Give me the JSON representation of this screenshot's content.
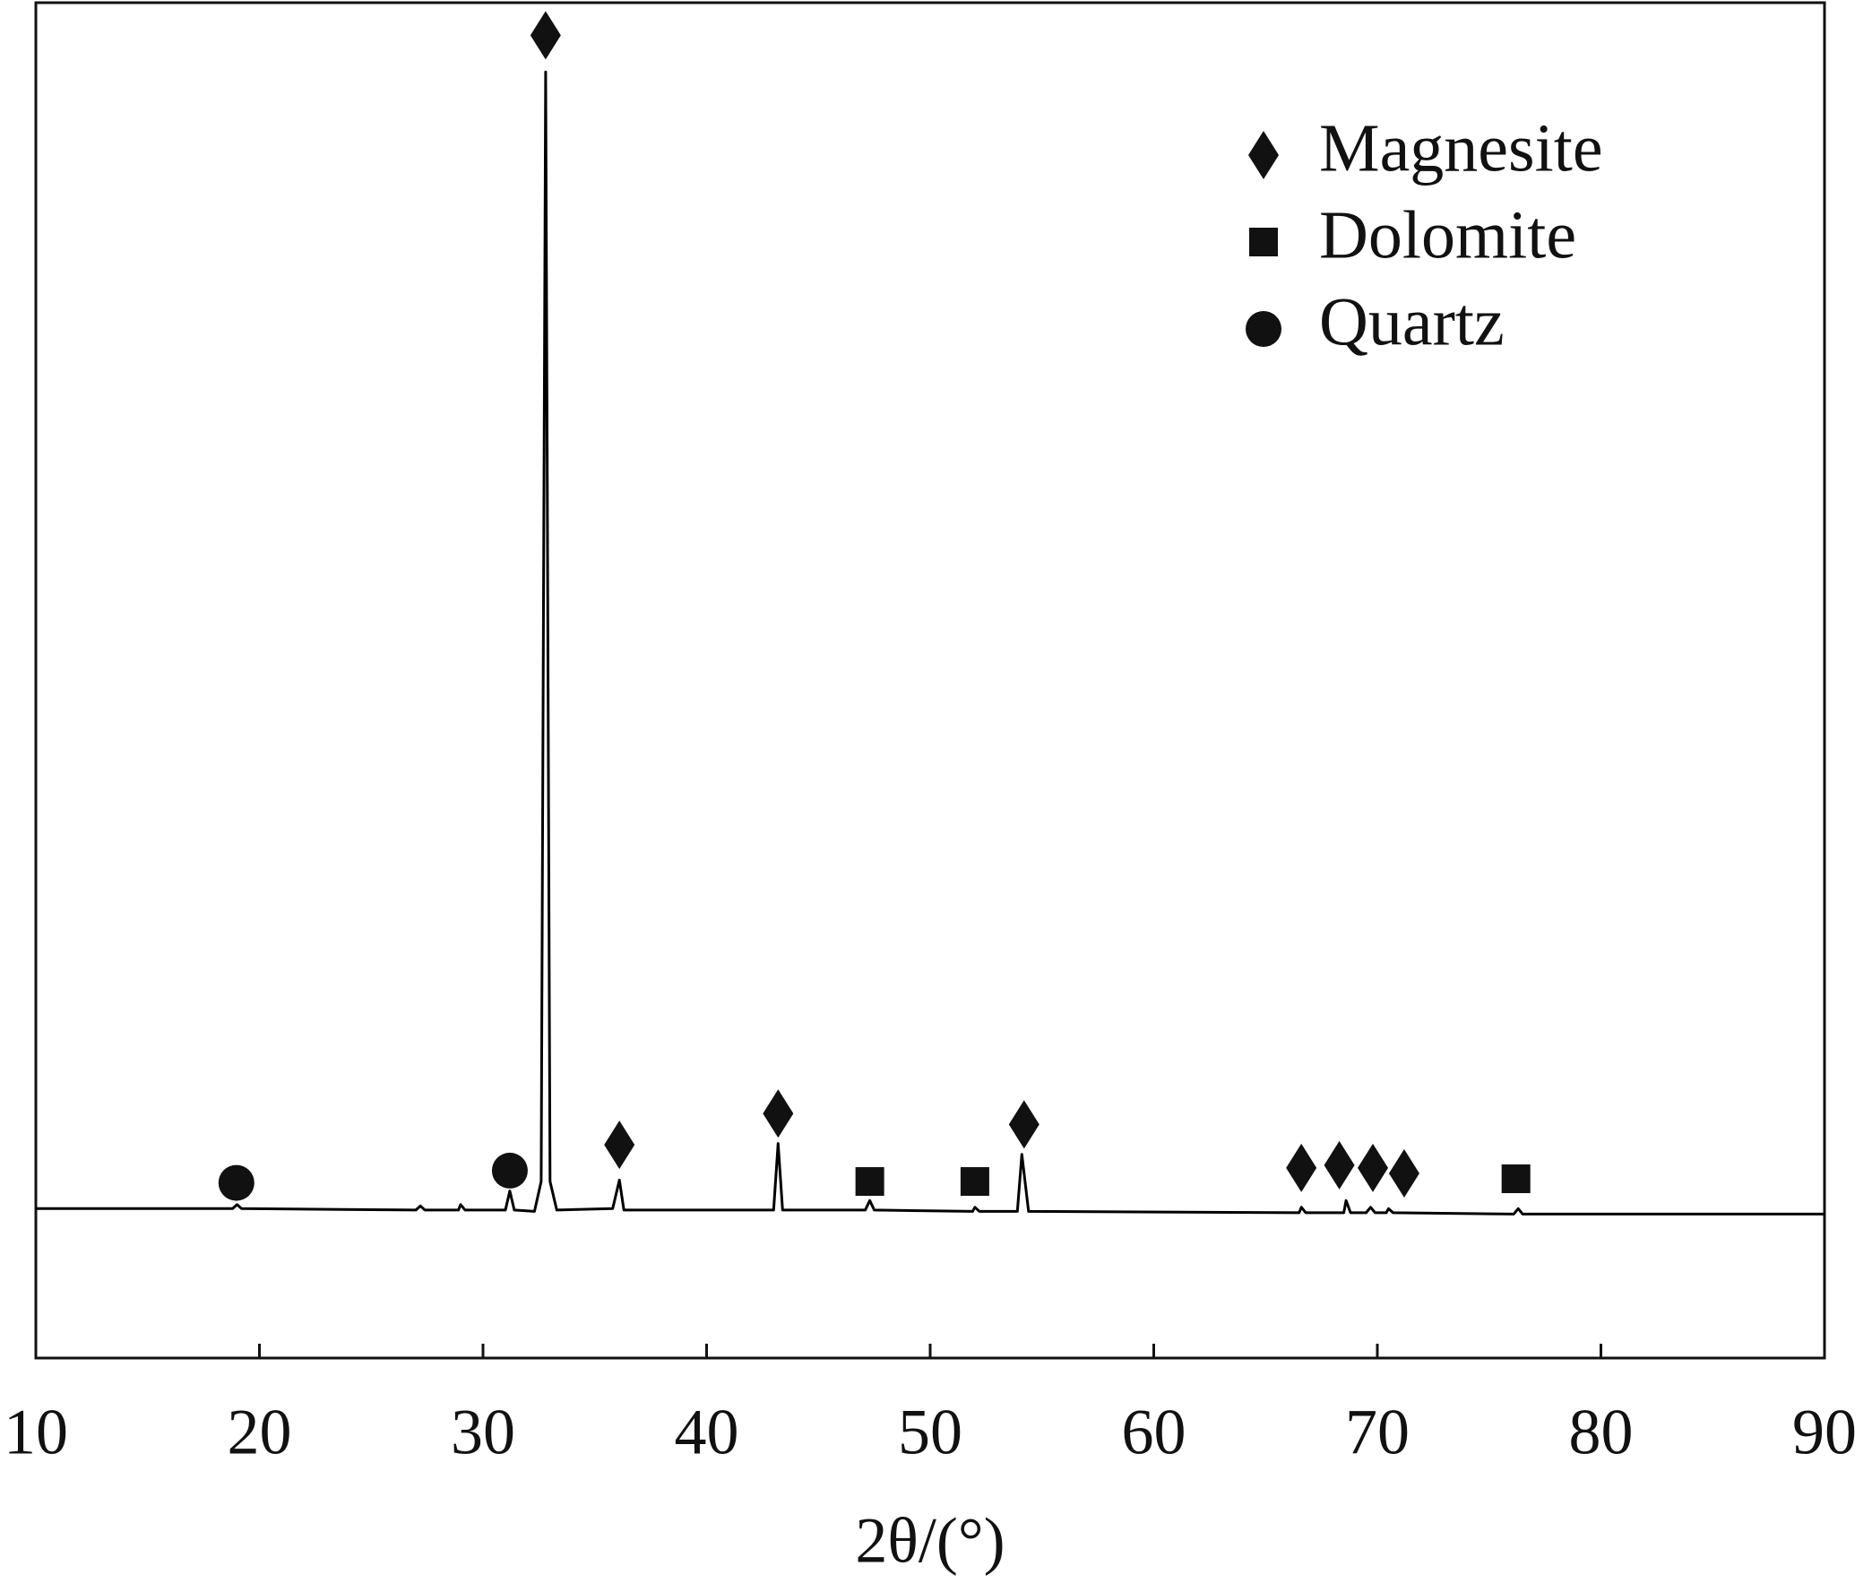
{
  "chart_data": {
    "type": "line",
    "xlabel": "2θ/(°)",
    "xlim": [
      10,
      90
    ],
    "xticks": [
      10,
      20,
      30,
      40,
      50,
      60,
      70,
      80,
      90
    ],
    "ylim": [
      0,
      100
    ],
    "color": "#000000",
    "x": [
      10,
      18.8,
      19.0,
      19.2,
      27,
      27.2,
      27.4,
      28.9,
      29.0,
      29.2,
      31.0,
      31.2,
      31.4,
      32.3,
      32.6,
      32.8,
      33.0,
      33.3,
      35.8,
      36.1,
      36.3,
      43.0,
      43.2,
      43.4,
      47.1,
      47.3,
      47.5,
      51.9,
      52.0,
      52.2,
      53.9,
      54.1,
      54.4,
      66.5,
      66.6,
      66.8,
      68.5,
      68.6,
      68.8,
      69.5,
      69.7,
      69.9,
      70.4,
      70.5,
      70.7,
      76.1,
      76.3,
      76.5,
      90
    ],
    "values": [
      11.0,
      11.0,
      11.3,
      11.0,
      10.9,
      11.2,
      10.9,
      10.9,
      11.3,
      10.9,
      10.9,
      12.3,
      10.9,
      10.8,
      13.0,
      94.7,
      13.0,
      10.9,
      11.0,
      13.1,
      10.9,
      10.9,
      15.8,
      10.9,
      10.9,
      11.6,
      10.9,
      10.8,
      11.1,
      10.8,
      10.8,
      15.0,
      10.8,
      10.7,
      11.1,
      10.7,
      10.7,
      11.6,
      10.7,
      10.7,
      11.1,
      10.7,
      10.7,
      11.0,
      10.7,
      10.6,
      11.0,
      10.6,
      10.6
    ],
    "legend": "upper right",
    "markers": [
      {
        "name": "Magnesite",
        "symbol": "diamond",
        "color": "#111111",
        "x": [
          32.8,
          36.1,
          43.2,
          54.2,
          66.6,
          68.3,
          69.8,
          71.2
        ],
        "y": [
          97.4,
          15.7,
          18.0,
          17.2,
          14.0,
          14.2,
          14.0,
          13.6
        ]
      },
      {
        "name": "Dolomite",
        "symbol": "square",
        "color": "#111111",
        "x": [
          47.3,
          52.0,
          76.2
        ],
        "y": [
          13.0,
          13.0,
          13.2
        ]
      },
      {
        "name": "Quartz",
        "symbol": "circle",
        "color": "#111111",
        "x": [
          18.97,
          31.2
        ],
        "y": [
          12.9,
          13.8
        ]
      }
    ]
  }
}
